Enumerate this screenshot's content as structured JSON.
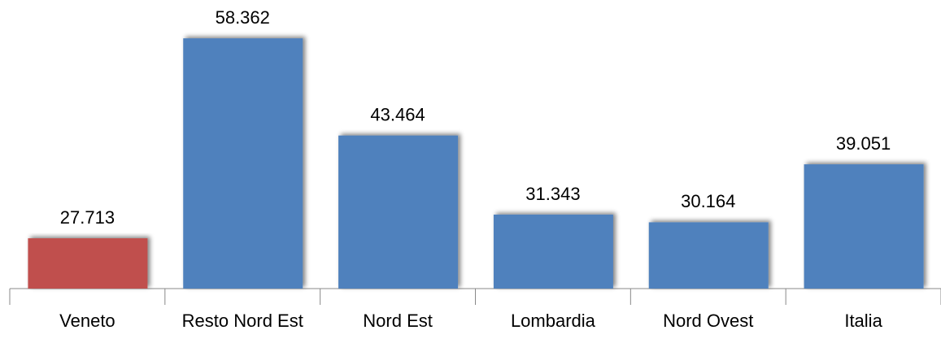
{
  "chart_data": {
    "type": "bar",
    "categories": [
      "Veneto",
      "Resto Nord Est",
      "Nord Est",
      "Lombardia",
      "Nord Ovest",
      "Italia"
    ],
    "values": [
      27713,
      58362,
      43464,
      31343,
      30164,
      39051
    ],
    "value_labels": [
      "27.713",
      "58.362",
      "43.464",
      "31.343",
      "30.164",
      "39.051"
    ],
    "colors": [
      "#c0504d",
      "#4f81bd",
      "#4f81bd",
      "#4f81bd",
      "#4f81bd",
      "#4f81bd"
    ],
    "ylim": [
      20000,
      60000
    ]
  }
}
